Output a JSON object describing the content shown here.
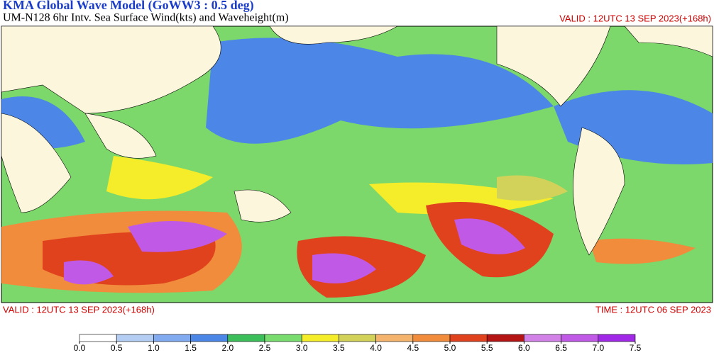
{
  "header": {
    "title": "KMA  Global Wave Model (GoWW3 : 0.5 deg)",
    "subtitle": "UM-N128  6hr Intv. Sea Surface Wind(kts) and Waveheight(m)",
    "valid": "VALID : 12UTC 13 SEP 2023(+168h)"
  },
  "footer": {
    "valid": "VALID : 12UTC 13 SEP 2023(+168h)",
    "time": "TIME : 12UTC 06 SEP 2023"
  },
  "legend": {
    "ticks": [
      {
        "value": 0,
        "label": "0.0"
      },
      {
        "value": 0.5,
        "label": "0.5"
      },
      {
        "value": 1,
        "label": "1.0"
      },
      {
        "value": 1.5,
        "label": "1.5"
      },
      {
        "value": 2,
        "label": "2.0"
      },
      {
        "value": 2.5,
        "label": "2.5"
      },
      {
        "value": 3,
        "label": "3.0"
      },
      {
        "value": 3.5,
        "label": "3.5"
      },
      {
        "value": 4,
        "label": "4.0"
      },
      {
        "value": 4.5,
        "label": "4.5"
      },
      {
        "value": 5,
        "label": "5.0"
      },
      {
        "value": 5.5,
        "label": "5.5"
      },
      {
        "value": 6,
        "label": "6.0"
      },
      {
        "value": 6.5,
        "label": "6.5"
      },
      {
        "value": 7,
        "label": "7.0"
      },
      {
        "value": 7.5,
        "label": "7.5"
      }
    ],
    "colors": [
      "#ffffff",
      "#b4cdf2",
      "#82aaf0",
      "#4c86e6",
      "#3cbe5a",
      "#78dc6e",
      "#f5ec2a",
      "#d2d25a",
      "#f5b46e",
      "#f08c3c",
      "#e0421e",
      "#b41414",
      "#d282e6",
      "#c05ae6",
      "#a028e6"
    ]
  }
}
